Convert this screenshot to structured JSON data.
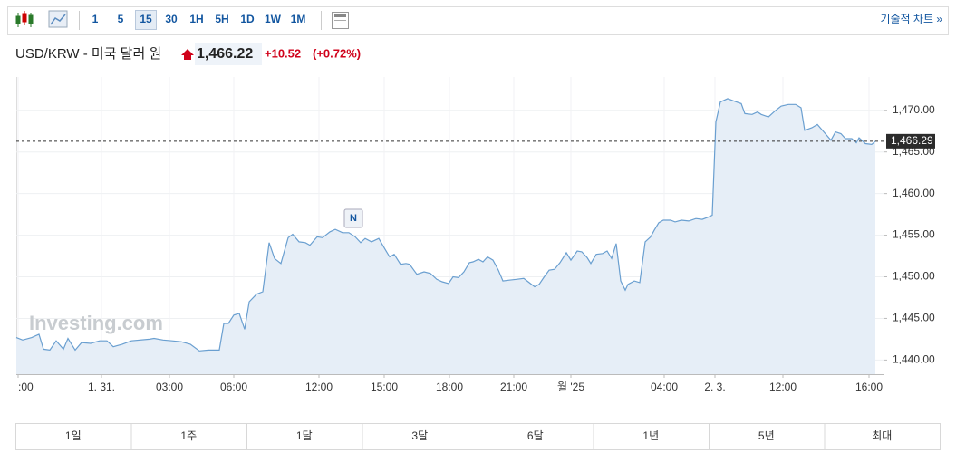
{
  "toolbar": {
    "intervals": [
      {
        "label": "1"
      },
      {
        "label": "5"
      },
      {
        "label": "15",
        "selected": true
      },
      {
        "label": "30"
      },
      {
        "label": "1H"
      },
      {
        "label": "5H"
      },
      {
        "label": "1D"
      },
      {
        "label": "1W"
      },
      {
        "label": "1M"
      }
    ],
    "link": "기술적 차트 »"
  },
  "header": {
    "symbol": "USD/KRW - 미국 달러 원",
    "price": "1,466.22",
    "change": "+10.52",
    "change_pct": "(+0.72%)"
  },
  "chart_data": {
    "type": "area",
    "watermark": "Investing.com",
    "annotation": "N",
    "color": "#6a9fd0",
    "fill_color": "#e6eef7",
    "grid": true,
    "x": [
      0,
      7,
      17,
      25,
      30,
      37,
      44,
      52,
      57,
      65,
      72,
      82,
      92,
      100,
      107,
      117,
      127,
      147,
      152,
      162,
      172,
      182,
      192,
      202,
      212,
      224,
      229,
      234,
      240,
      246,
      252,
      257,
      265,
      272,
      279,
      285,
      292,
      300,
      305,
      312,
      319,
      324,
      332,
      338,
      346,
      352,
      360,
      367,
      374,
      380,
      385,
      392,
      400,
      407,
      412,
      417,
      424,
      430,
      434,
      442,
      450,
      457,
      464,
      470,
      477,
      482,
      488,
      494,
      500,
      504,
      510,
      515,
      520,
      526,
      532,
      537,
      544,
      552,
      560,
      566,
      572,
      577,
      582,
      588,
      594,
      600,
      607,
      612,
      619,
      624,
      630,
      634,
      640,
      647,
      652,
      657,
      662,
      667,
      672,
      675,
      682,
      688,
      694,
      700,
      704,
      709,
      714,
      722,
      727,
      734,
      742,
      750,
      757,
      764,
      768,
      772,
      777,
      785,
      792,
      800,
      804,
      812,
      818,
      822,
      830,
      837,
      844,
      852,
      860,
      866,
      870,
      878,
      884,
      892,
      899,
      904,
      910,
      915,
      922,
      927,
      930,
      937,
      944,
      948
    ],
    "values": [
      1442.7,
      1442.4,
      1442.7,
      1443.1,
      1441.3,
      1441.2,
      1442.3,
      1441.3,
      1442.6,
      1441.2,
      1442.1,
      1442.0,
      1442.3,
      1442.3,
      1441.6,
      1441.9,
      1442.3,
      1442.5,
      1442.6,
      1442.4,
      1442.3,
      1442.2,
      1441.9,
      1441.1,
      1441.2,
      1441.2,
      1444.4,
      1444.4,
      1445.4,
      1445.6,
      1443.7,
      1447.0,
      1447.9,
      1448.2,
      1454.1,
      1452.2,
      1451.6,
      1454.7,
      1455.1,
      1454.2,
      1454.1,
      1453.8,
      1454.8,
      1454.7,
      1455.4,
      1455.7,
      1455.3,
      1455.3,
      1454.8,
      1454.1,
      1454.6,
      1454.2,
      1454.6,
      1453.3,
      1452.4,
      1452.7,
      1451.5,
      1451.6,
      1451.5,
      1450.3,
      1450.6,
      1450.4,
      1449.7,
      1449.4,
      1449.2,
      1450.0,
      1449.9,
      1450.6,
      1451.7,
      1451.8,
      1452.1,
      1451.8,
      1452.4,
      1452.0,
      1450.8,
      1449.5,
      1449.6,
      1449.7,
      1449.8,
      1449.3,
      1448.8,
      1449.1,
      1449.9,
      1450.8,
      1450.9,
      1451.7,
      1452.9,
      1452.0,
      1453.1,
      1453.0,
      1452.3,
      1451.6,
      1452.7,
      1452.8,
      1453.1,
      1452.2,
      1454.0,
      1449.5,
      1448.4,
      1449.1,
      1449.5,
      1449.3,
      1454.2,
      1454.8,
      1455.6,
      1456.5,
      1456.8,
      1456.8,
      1456.6,
      1456.8,
      1456.7,
      1457.0,
      1456.9,
      1457.2,
      1457.4,
      1468.6,
      1471.0,
      1471.4,
      1471.1,
      1470.8,
      1469.6,
      1469.5,
      1469.8,
      1469.5,
      1469.2,
      1469.9,
      1470.5,
      1470.7,
      1470.7,
      1470.3,
      1467.6,
      1467.9,
      1468.3,
      1467.3,
      1466.4,
      1467.4,
      1467.2,
      1466.6,
      1466.6,
      1466.1,
      1466.7,
      1466.0,
      1465.9,
      1466.29
    ],
    "last_price": {
      "value": 1466.29,
      "label": "1,466.29"
    },
    "xlim": [
      0,
      957
    ],
    "xticks": [
      {
        "value": 2,
        "label": ":00"
      },
      {
        "value": 94,
        "label": "1. 31."
      },
      {
        "value": 169,
        "label": "03:00"
      },
      {
        "value": 240,
        "label": "06:00"
      },
      {
        "value": 334,
        "label": "12:00"
      },
      {
        "value": 406,
        "label": "15:00"
      },
      {
        "value": 478,
        "label": "18:00"
      },
      {
        "value": 549,
        "label": "21:00"
      },
      {
        "value": 612,
        "label": "월 '25"
      },
      {
        "value": 715,
        "label": "04:00"
      },
      {
        "value": 771,
        "label": "2. 3."
      },
      {
        "value": 846,
        "label": "12:00"
      },
      {
        "value": 941,
        "label": "16:00"
      }
    ],
    "ylim": [
      1438.3,
      1474
    ],
    "yticks": [
      {
        "value": 1440,
        "label": "1,440.00"
      },
      {
        "value": 1445,
        "label": "1,445.00"
      },
      {
        "value": 1450,
        "label": "1,450.00"
      },
      {
        "value": 1455,
        "label": "1,455.00"
      },
      {
        "value": 1460,
        "label": "1,460.00"
      },
      {
        "value": 1465,
        "label": "1,465.00"
      },
      {
        "value": 1470,
        "label": "1,470.00"
      }
    ]
  },
  "ranges": [
    "1일",
    "1주",
    "1달",
    "3달",
    "6달",
    "1년",
    "5년",
    "최대"
  ]
}
